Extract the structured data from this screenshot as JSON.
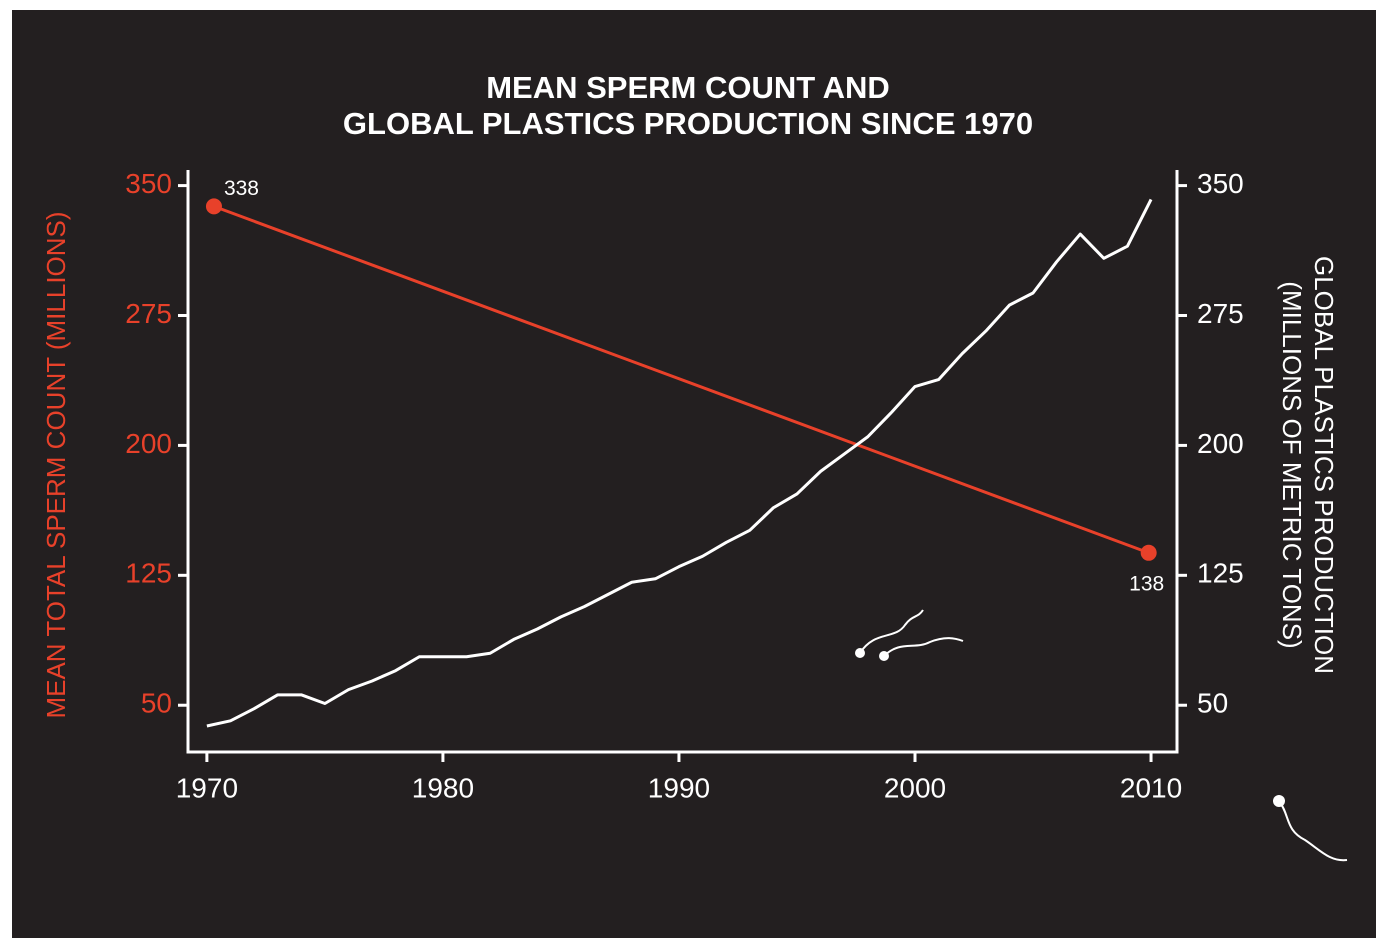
{
  "chart_data": {
    "type": "line",
    "title": [
      "MEAN SPERM COUNT AND",
      "GLOBAL PLASTICS PRODUCTION SINCE 1970"
    ],
    "ylabel": "MEAN TOTAL SPERM COUNT (MILLIONS)",
    "y2label": [
      "GLOBAL PLASTICS PRODUCTION",
      "(MILLIONS OF METRIC TONS)"
    ],
    "xlim": [
      1969.2,
      2011.1
    ],
    "xticks": [
      1970,
      1980,
      1990,
      2000,
      2010
    ],
    "ylim": [
      23,
      359
    ],
    "yticks": [
      50,
      125,
      200,
      275,
      350
    ],
    "y2lim": [
      23,
      359
    ],
    "y2ticks": [
      50,
      125,
      200,
      275,
      350
    ],
    "ycolor": "#e8412a",
    "y2color": "#ffffff",
    "series": [
      {
        "color": "#e8412a",
        "axis": "y",
        "markers": true,
        "data_labels": true,
        "x": [
          1970.3,
          2009.9
        ],
        "values": [
          338,
          138
        ]
      },
      {
        "color": "#ffffff",
        "axis": "y2",
        "markers": false,
        "data_labels": false,
        "x": [
          1970,
          1971,
          1972,
          1973,
          1974,
          1975,
          1976,
          1977,
          1978,
          1979,
          1980,
          1981,
          1982,
          1983,
          1984,
          1985,
          1986,
          1987,
          1988,
          1989,
          1990,
          1991,
          1992,
          1993,
          1994,
          1995,
          1996,
          1997,
          1998,
          1999,
          2000,
          2001,
          2002,
          2003,
          2004,
          2005,
          2006,
          2007,
          2008,
          2009,
          2010
        ],
        "values": [
          38,
          41,
          48,
          56,
          56,
          51,
          59,
          64,
          70,
          78,
          78,
          78,
          80,
          88,
          94,
          101,
          107,
          114,
          121,
          123,
          130,
          136,
          144,
          151,
          164,
          172,
          185,
          195,
          205,
          219,
          234,
          238,
          253,
          266,
          281,
          288,
          306,
          322,
          308,
          315,
          342
        ]
      }
    ]
  }
}
